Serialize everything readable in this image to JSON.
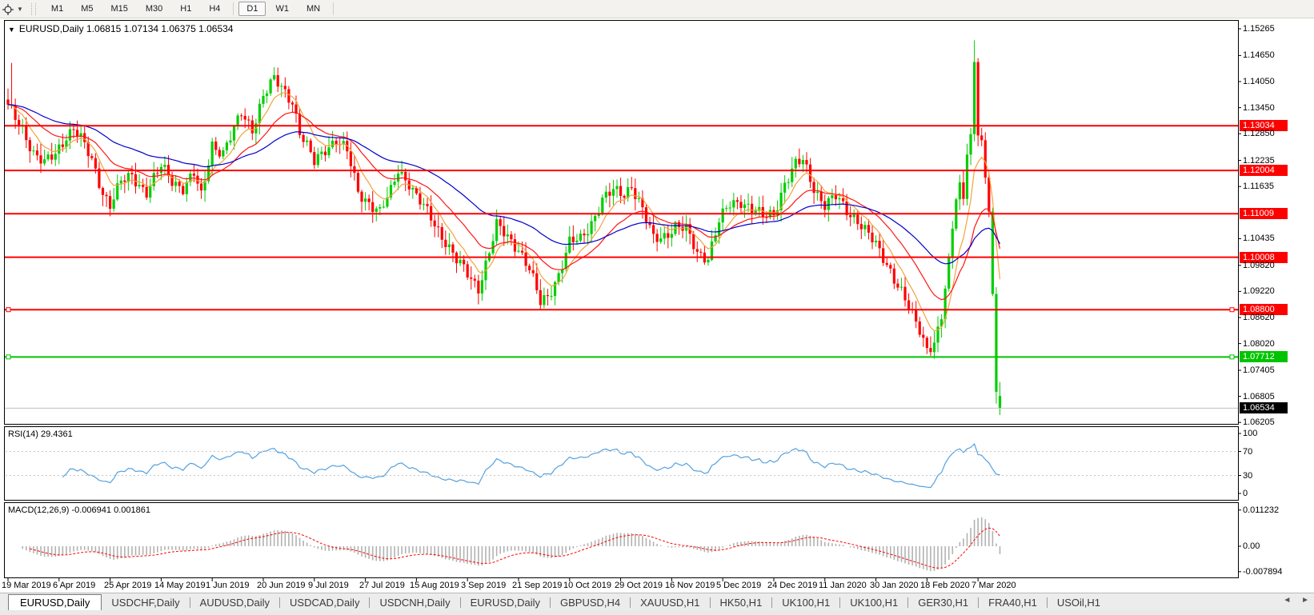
{
  "toolbar": {
    "timeframes": [
      "M1",
      "M5",
      "M15",
      "M30",
      "H1",
      "H4",
      "D1",
      "W1",
      "MN"
    ],
    "active_timeframe": "D1"
  },
  "chart_title": {
    "symbol": "EURUSD,Daily",
    "ohlc_text": "1.06815 1.07134 1.06375 1.06534"
  },
  "price_axis": {
    "ticks": [
      "1.15265",
      "1.14650",
      "1.14050",
      "1.13450",
      "1.12850",
      "1.12235",
      "1.11635",
      "1.10435",
      "1.09820",
      "1.09220",
      "1.08620",
      "1.08020",
      "1.07405",
      "1.06805",
      "1.06205"
    ]
  },
  "levels": [
    {
      "price": 1.13034,
      "label": "1.13034",
      "kind": "resistance",
      "handles": false
    },
    {
      "price": 1.12004,
      "label": "1.12004",
      "kind": "resistance",
      "handles": false
    },
    {
      "price": 1.11009,
      "label": "1.11009",
      "kind": "resistance",
      "handles": false
    },
    {
      "price": 1.10008,
      "label": "1.10008",
      "kind": "resistance",
      "handles": false
    },
    {
      "price": 1.088,
      "label": "1.08800",
      "kind": "resistance",
      "handles": true
    },
    {
      "price": 1.07712,
      "label": "1.07712",
      "kind": "support",
      "handles": true
    }
  ],
  "current_price": {
    "price": 1.06534,
    "label": "1.06534"
  },
  "rsi_panel": {
    "label": "RSI(14) 29.4361",
    "ticks": [
      {
        "value": 100,
        "label": "100"
      },
      {
        "value": 70,
        "label": "70"
      },
      {
        "value": 30,
        "label": "30"
      },
      {
        "value": 0,
        "label": "0"
      }
    ],
    "dashed_levels": [
      70,
      30
    ]
  },
  "macd_panel": {
    "label": "MACD(12,26,9) -0.006941 0.001861",
    "ticks": [
      {
        "value": 0.011232,
        "label": "0.011232"
      },
      {
        "value": 0,
        "label": "0.00"
      },
      {
        "value": -0.007894,
        "label": "-0.007894"
      }
    ]
  },
  "date_axis": {
    "labels": [
      "19 Mar 2019",
      "6 Apr 2019",
      "25 Apr 2019",
      "14 May 2019",
      "1 Jun 2019",
      "20 Jun 2019",
      "9 Jul 2019",
      "27 Jul 2019",
      "15 Aug 2019",
      "3 Sep 2019",
      "21 Sep 2019",
      "10 Oct 2019",
      "29 Oct 2019",
      "16 Nov 2019",
      "5 Dec 2019",
      "24 Dec 2019",
      "11 Jan 2020",
      "30 Jan 2020",
      "18 Feb 2020",
      "7 Mar 2020"
    ]
  },
  "tabs": {
    "items": [
      "EURUSD,Daily",
      "USDCHF,Daily",
      "AUDUSD,Daily",
      "USDCAD,Daily",
      "USDCNH,Daily",
      "EURUSD,Daily",
      "GBPUSD,H4",
      "XAUUSD,H1",
      "HK50,H1",
      "UK100,H1",
      "UK100,H1",
      "GER30,H1",
      "FRA40,H1",
      "USOil,H1"
    ],
    "active_index": 0,
    "scroll_left": "◄",
    "scroll_right": "►"
  },
  "colors": {
    "bull": "#00ce00",
    "bear": "#ff0000",
    "resistance": "#ff0000",
    "support": "#00c400",
    "current_price_bg": "#000000",
    "current_price_line": "#c0c0c0",
    "ma_fast": "#f2a33c",
    "ma_mid": "#ff1414",
    "ma_slow": "#0000cd",
    "rsi_line": "#55a1de",
    "rsi_levels": "#c6c6c6",
    "macd_hist": "#b2b2b2",
    "macd_signal": "#ff0000"
  },
  "chart_data": {
    "type": "candlestick",
    "symbol": "EURUSD",
    "timeframe": "Daily",
    "y_axis_range": [
      1.06205,
      1.15265
    ],
    "last_candle": {
      "open": 1.06815,
      "high": 1.07134,
      "low": 1.06375,
      "close": 1.06534
    },
    "horizontal_lines": [
      1.13034,
      1.12004,
      1.11009,
      1.10008,
      1.088,
      1.07712
    ],
    "candles_per_date_label": 14,
    "price_path_anchors": [
      [
        0,
        1.1345
      ],
      [
        2,
        1.132
      ],
      [
        4,
        1.1298
      ],
      [
        7,
        1.1242
      ],
      [
        10,
        1.1215
      ],
      [
        13,
        1.1238
      ],
      [
        16,
        1.1282
      ],
      [
        18,
        1.1298
      ],
      [
        20,
        1.1272
      ],
      [
        23,
        1.1222
      ],
      [
        26,
        1.1152
      ],
      [
        28,
        1.1122
      ],
      [
        31,
        1.1172
      ],
      [
        34,
        1.1188
      ],
      [
        38,
        1.1152
      ],
      [
        42,
        1.1208
      ],
      [
        45,
        1.1178
      ],
      [
        48,
        1.1162
      ],
      [
        51,
        1.1192
      ],
      [
        53,
        1.1138
      ],
      [
        56,
        1.1262
      ],
      [
        59,
        1.1242
      ],
      [
        62,
        1.1292
      ],
      [
        64,
        1.1332
      ],
      [
        67,
        1.1298
      ],
      [
        70,
        1.1372
      ],
      [
        73,
        1.1408
      ],
      [
        75,
        1.1392
      ],
      [
        78,
        1.1362
      ],
      [
        80,
        1.1288
      ],
      [
        84,
        1.1218
      ],
      [
        87,
        1.1252
      ],
      [
        90,
        1.1272
      ],
      [
        93,
        1.1242
      ],
      [
        96,
        1.1152
      ],
      [
        99,
        1.1128
      ],
      [
        102,
        1.1102
      ],
      [
        105,
        1.1152
      ],
      [
        107,
        1.1205
      ],
      [
        110,
        1.1172
      ],
      [
        112,
        1.1138
      ],
      [
        116,
        1.1092
      ],
      [
        120,
        1.1038
      ],
      [
        123,
        1.0992
      ],
      [
        126,
        1.0962
      ],
      [
        129,
        1.0932
      ],
      [
        132,
        1.1012
      ],
      [
        134,
        1.1072
      ],
      [
        137,
        1.1048
      ],
      [
        140,
        1.1022
      ],
      [
        143,
        1.0972
      ],
      [
        146,
        1.0895
      ],
      [
        148,
        1.0912
      ],
      [
        151,
        1.0962
      ],
      [
        154,
        1.1032
      ],
      [
        157,
        1.1042
      ],
      [
        160,
        1.1082
      ],
      [
        163,
        1.1132
      ],
      [
        166,
        1.1152
      ],
      [
        169,
        1.1148
      ],
      [
        171,
        1.1168
      ],
      [
        174,
        1.1108
      ],
      [
        177,
        1.1042
      ],
      [
        180,
        1.1052
      ],
      [
        183,
        1.1072
      ],
      [
        186,
        1.1062
      ],
      [
        189,
        1.1012
      ],
      [
        192,
        1.1002
      ],
      [
        195,
        1.1082
      ],
      [
        198,
        1.1122
      ],
      [
        201,
        1.1132
      ],
      [
        204,
        1.1112
      ],
      [
        207,
        1.1092
      ],
      [
        210,
        1.1102
      ],
      [
        213,
        1.1172
      ],
      [
        216,
        1.1212
      ],
      [
        218,
        1.1222
      ],
      [
        221,
        1.1162
      ],
      [
        224,
        1.1122
      ],
      [
        227,
        1.1138
      ],
      [
        230,
        1.1108
      ],
      [
        233,
        1.1088
      ],
      [
        236,
        1.1052
      ],
      [
        239,
        1.1012
      ],
      [
        242,
        1.0972
      ],
      [
        245,
        1.0922
      ],
      [
        248,
        1.0862
      ],
      [
        250,
        1.0832
      ],
      [
        252,
        1.0792
      ],
      [
        254,
        1.0808
      ],
      [
        256,
        1.0858
      ],
      [
        258,
        1.0999
      ],
      [
        260,
        1.1134
      ],
      [
        261,
        1.1173
      ],
      [
        262,
        1.1135
      ],
      [
        263,
        1.1237
      ],
      [
        264,
        1.1284
      ],
      [
        265,
        1.145
      ],
      [
        266,
        1.1281
      ],
      [
        267,
        1.127
      ],
      [
        268,
        1.1184
      ],
      [
        269,
        1.1106
      ],
      [
        270,
        1.0916
      ],
      [
        271,
        1.0691
      ],
      [
        272,
        1.06534
      ]
    ],
    "wick_overrides": [
      [
        1,
        "high",
        1.1448
      ],
      [
        73,
        "high",
        1.1438
      ],
      [
        146,
        "low",
        1.0879
      ],
      [
        252,
        "low",
        1.0778
      ],
      [
        265,
        "high",
        1.15
      ],
      [
        271,
        "low",
        1.0664
      ]
    ],
    "green_body_overrides": [
      270,
      271,
      272
    ],
    "indicators": {
      "rsi": {
        "period": 14,
        "current": 29.4361,
        "levels": [
          70,
          30
        ],
        "range": [
          0,
          100
        ]
      },
      "macd": {
        "fast": 12,
        "slow": 26,
        "signal": 9,
        "current_main": -0.006941,
        "current_signal": 0.001861
      },
      "moving_averages": [
        {
          "period": 8,
          "color_key": "ma_fast"
        },
        {
          "period": 21,
          "color_key": "ma_mid"
        },
        {
          "period": 50,
          "color_key": "ma_slow"
        }
      ]
    }
  }
}
